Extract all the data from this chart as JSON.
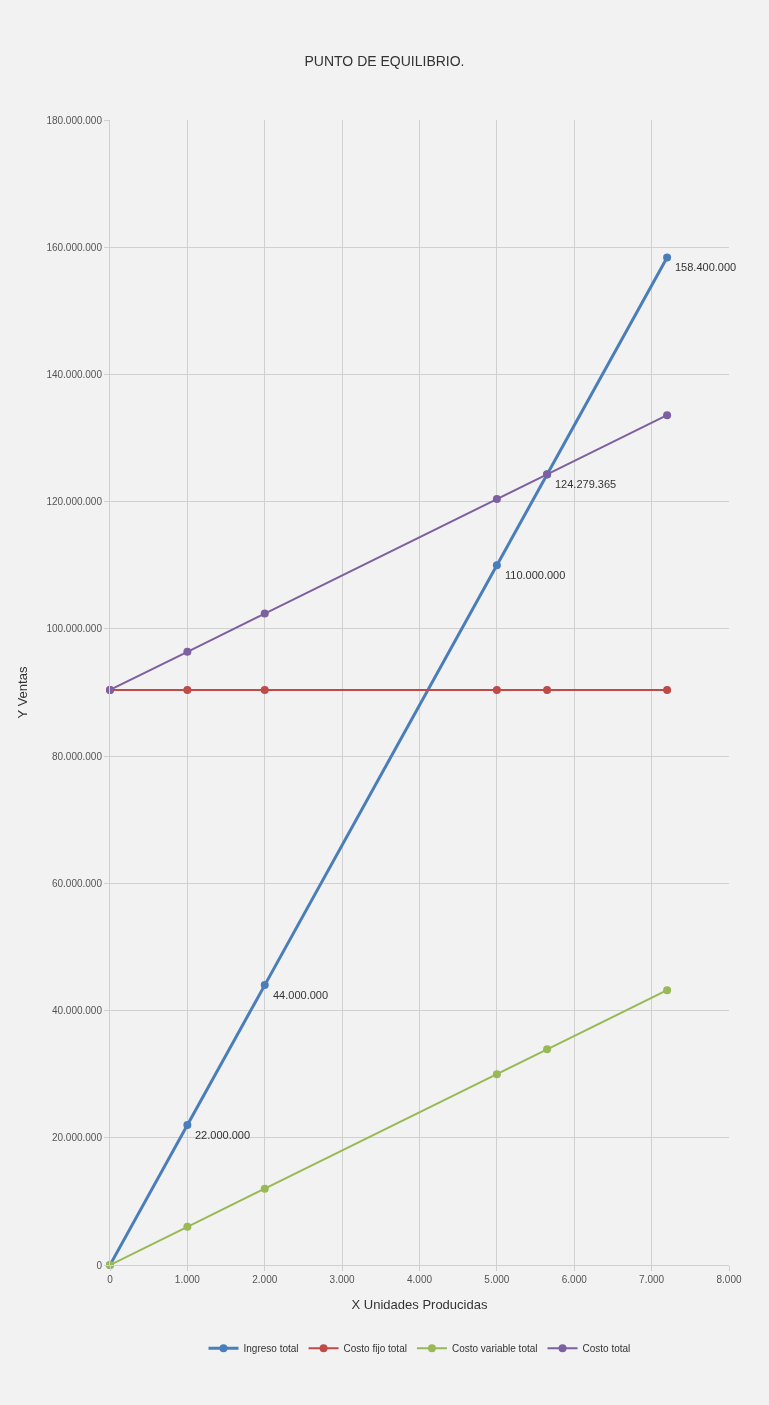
{
  "chart_data": {
    "type": "line",
    "title": "PUNTO DE EQUILIBRIO.",
    "xlabel": "X Unidades Producidas",
    "ylabel": "Y Ventas",
    "x": [
      0,
      1000,
      2000,
      5000,
      5649,
      7200
    ],
    "xlim": [
      0,
      8000
    ],
    "xticks": [
      {
        "value": 0,
        "label": "0"
      },
      {
        "value": 1000,
        "label": "1.000"
      },
      {
        "value": 2000,
        "label": "2.000"
      },
      {
        "value": 3000,
        "label": "3.000"
      },
      {
        "value": 4000,
        "label": "4.000"
      },
      {
        "value": 5000,
        "label": "5.000"
      },
      {
        "value": 6000,
        "label": "6.000"
      },
      {
        "value": 7000,
        "label": "7.000"
      },
      {
        "value": 8000,
        "label": "8.000"
      }
    ],
    "ylim": [
      0,
      180000000
    ],
    "yticks": [
      {
        "value": 0,
        "label": "0"
      },
      {
        "value": 20000000,
        "label": "20.000.000"
      },
      {
        "value": 40000000,
        "label": "40.000.000"
      },
      {
        "value": 60000000,
        "label": "60.000.000"
      },
      {
        "value": 80000000,
        "label": "80.000.000"
      },
      {
        "value": 100000000,
        "label": "100.000.000"
      },
      {
        "value": 120000000,
        "label": "120.000.000"
      },
      {
        "value": 140000000,
        "label": "140.000.000"
      },
      {
        "value": 160000000,
        "label": "160.000.000"
      },
      {
        "value": 180000000,
        "label": "180.000.000"
      }
    ],
    "series": [
      {
        "name": "Ingreso total",
        "color": "#4a7ebb",
        "values": [
          0,
          22000000,
          44000000,
          110000000,
          124279365,
          158400000
        ],
        "value_labels": [
          null,
          "22.000.000",
          "44.000.000",
          "110.000.000",
          "124.279.365",
          "158.400.000"
        ]
      },
      {
        "name": "Costo fijo total",
        "color": "#be4b48",
        "values": [
          90400000,
          90400000,
          90400000,
          90400000,
          90400000,
          90400000
        ]
      },
      {
        "name": "Costo variable total",
        "color": "#98b954",
        "values": [
          0,
          6000000,
          12000000,
          30000000,
          33900000,
          43200000
        ]
      },
      {
        "name": "Costo total",
        "color": "#7d60a0",
        "values": [
          90400000,
          96400000,
          102400000,
          120400000,
          124300000,
          133600000
        ]
      }
    ],
    "grid": true,
    "legend": "bottom",
    "marker": "circle",
    "line_style": "solid"
  }
}
